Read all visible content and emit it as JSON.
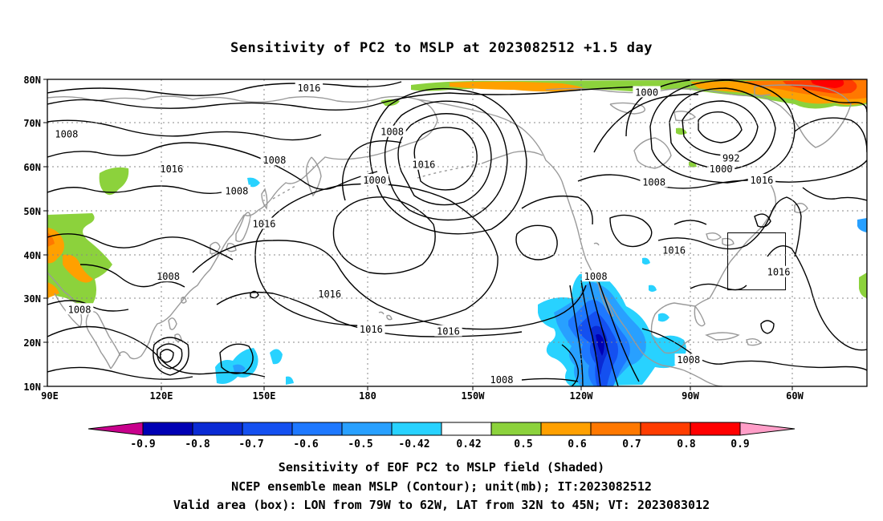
{
  "title": "Sensitivity of PC2 to MSLP at 2023082512 +1.5 day",
  "map": {
    "lon_labels": [
      "90E",
      "120E",
      "150E",
      "180",
      "150W",
      "120W",
      "90W",
      "60W"
    ],
    "lat_labels": [
      "80N",
      "70N",
      "60N",
      "50N",
      "40N",
      "30N",
      "20N",
      "10N"
    ],
    "contour_labels": [
      {
        "text": "1016",
        "lon": 163,
        "lat": 78
      },
      {
        "text": "1000",
        "lon": -102,
        "lat": 77
      },
      {
        "text": "1008",
        "lon": 94.5,
        "lat": 67.5
      },
      {
        "text": "1008",
        "lon": -173,
        "lat": 68
      },
      {
        "text": "992",
        "lon": -78,
        "lat": 62
      },
      {
        "text": "1000",
        "lon": -81,
        "lat": 59.5
      },
      {
        "text": "1008",
        "lon": 153,
        "lat": 61.5
      },
      {
        "text": "1016",
        "lon": 123,
        "lat": 59.5
      },
      {
        "text": "1016",
        "lon": -164,
        "lat": 60.5
      },
      {
        "text": "1000",
        "lon": -178,
        "lat": 57
      },
      {
        "text": "1008",
        "lon": 142,
        "lat": 54.5
      },
      {
        "text": "1008",
        "lon": -100,
        "lat": 56.5
      },
      {
        "text": "1016",
        "lon": -69,
        "lat": 57
      },
      {
        "text": "1016",
        "lon": 150,
        "lat": 47
      },
      {
        "text": "1016",
        "lon": -94.5,
        "lat": 41
      },
      {
        "text": "1016",
        "lon": -64,
        "lat": 36
      },
      {
        "text": "1008",
        "lon": 122,
        "lat": 35
      },
      {
        "text": "1008",
        "lon": -116,
        "lat": 35
      },
      {
        "text": "1016",
        "lon": -191,
        "lat": 31
      },
      {
        "text": "1008",
        "lon": 98,
        "lat": 27.5
      },
      {
        "text": "1016",
        "lon": -179,
        "lat": 23
      },
      {
        "text": "1016",
        "lon": -157,
        "lat": 22.5
      },
      {
        "text": "1008",
        "lon": -90.5,
        "lat": 16
      },
      {
        "text": "1008",
        "lon": -142,
        "lat": 11.5
      }
    ],
    "valid_box": {
      "lon_min": -79,
      "lon_max": -62,
      "lat_min": 32,
      "lat_max": 45
    }
  },
  "colorbar": {
    "labels": [
      "-0.9",
      "-0.8",
      "-0.7",
      "-0.6",
      "-0.5",
      "-0.42",
      "0.42",
      "0.5",
      "0.6",
      "0.7",
      "0.8",
      "0.9"
    ],
    "colors": [
      "#0000b4",
      "#0a2ad4",
      "#1450f0",
      "#1e78ff",
      "#28a0ff",
      "#28d2ff",
      "#ffffff",
      "#8cd23c",
      "#ffa000",
      "#ff7800",
      "#ff3c00",
      "#ff0000"
    ],
    "low_arrow_color": "#c8008c",
    "high_arrow_color": "#ff9ec8"
  },
  "captions": {
    "line1": "Sensitivity of EOF PC2 to MSLP field (Shaded)",
    "line2": "NCEP ensemble mean MSLP (Contour); unit(mb); IT:2023082512",
    "line3": "Valid area (box): LON from 79W to 62W, LAT from 32N to 45N; VT: 2023083012"
  }
}
